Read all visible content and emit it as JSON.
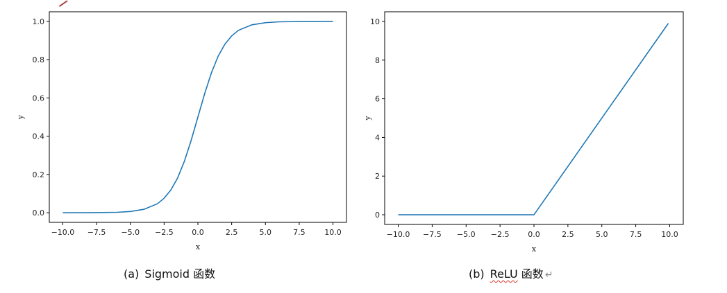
{
  "chart_data": [
    {
      "type": "line",
      "title": "",
      "xlabel": "x",
      "ylabel": "y",
      "xlim": [
        -11.0,
        11.0
      ],
      "ylim": [
        -0.05,
        1.05
      ],
      "xticks": [
        -10.0,
        -7.5,
        -5.0,
        -2.5,
        0.0,
        2.5,
        5.0,
        7.5,
        10.0
      ],
      "xtick_labels": [
        "−10.0",
        "−7.5",
        "−5.0",
        "−2.5",
        "0.0",
        "2.5",
        "5.0",
        "7.5",
        "10.0"
      ],
      "yticks": [
        0.0,
        0.2,
        0.4,
        0.6,
        0.8,
        1.0
      ],
      "ytick_labels": [
        "0.0",
        "0.2",
        "0.4",
        "0.6",
        "0.8",
        "1.0"
      ],
      "grid": false,
      "series": [
        {
          "color": "#1f77b4",
          "x": [
            -10,
            -8,
            -6,
            -5,
            -4,
            -3,
            -2.5,
            -2,
            -1.5,
            -1,
            -0.5,
            0,
            0.5,
            1,
            1.5,
            2,
            2.5,
            3,
            4,
            5,
            6,
            8,
            10
          ],
          "y": [
            5e-05,
            0.0003,
            0.0025,
            0.0067,
            0.018,
            0.047,
            0.076,
            0.119,
            0.182,
            0.269,
            0.378,
            0.5,
            0.622,
            0.731,
            0.818,
            0.881,
            0.924,
            0.953,
            0.982,
            0.993,
            0.9975,
            0.9997,
            0.99995
          ]
        }
      ],
      "caption_prefix": "(a)",
      "caption_text": "Sigmoid 函数"
    },
    {
      "type": "line",
      "title": "",
      "xlabel": "x",
      "ylabel": "y",
      "xlim": [
        -11.0,
        11.0
      ],
      "ylim": [
        -0.5,
        10.5
      ],
      "xticks": [
        -10.0,
        -7.5,
        -5.0,
        -2.5,
        0.0,
        2.5,
        5.0,
        7.5,
        10.0
      ],
      "xtick_labels": [
        "−10.0",
        "−7.5",
        "−5.0",
        "−2.5",
        "0.0",
        "2.5",
        "5.0",
        "7.5",
        "10.0"
      ],
      "yticks": [
        0,
        2,
        4,
        6,
        8,
        10
      ],
      "ytick_labels": [
        "0",
        "2",
        "4",
        "6",
        "8",
        "10"
      ],
      "grid": false,
      "series": [
        {
          "color": "#1f77b4",
          "x": [
            -10,
            0,
            9.9
          ],
          "y": [
            0,
            0,
            9.9
          ]
        }
      ],
      "caption_prefix": "(b)",
      "caption_text": "ReLU 函数",
      "caption_squiggle": "ReLU",
      "caption_rest": " 函数",
      "caption_mark": "↵"
    }
  ]
}
